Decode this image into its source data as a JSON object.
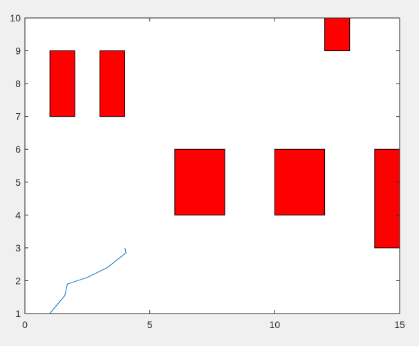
{
  "chart_data": {
    "type": "scatter",
    "title": "",
    "xlabel": "",
    "ylabel": "",
    "xlim": [
      0,
      15
    ],
    "ylim": [
      1,
      10
    ],
    "xticks": [
      0,
      5,
      10,
      15
    ],
    "yticks": [
      1,
      2,
      3,
      4,
      5,
      6,
      7,
      8,
      9,
      10
    ],
    "xtick_labels": [
      "0",
      "5",
      "10",
      "15"
    ],
    "ytick_labels": [
      "1",
      "2",
      "3",
      "4",
      "5",
      "6",
      "7",
      "8",
      "9",
      "10"
    ],
    "grid": false,
    "rectangles": [
      {
        "x0": 1,
        "x1": 2,
        "y0": 7,
        "y1": 9
      },
      {
        "x0": 3,
        "x1": 4,
        "y0": 7,
        "y1": 9
      },
      {
        "x0": 12,
        "x1": 13,
        "y0": 9,
        "y1": 10
      },
      {
        "x0": 6,
        "x1": 8,
        "y0": 4,
        "y1": 6
      },
      {
        "x0": 10,
        "x1": 12,
        "y0": 4,
        "y1": 6
      },
      {
        "x0": 14,
        "x1": 15,
        "y0": 3,
        "y1": 6
      }
    ],
    "rect_fill": "#ff0000",
    "rect_stroke": "#000000",
    "line": {
      "color": "#0072bd",
      "x": [
        1.0,
        1.6,
        1.7,
        2.5,
        3.3,
        4.05,
        4.0
      ],
      "y": [
        1.0,
        1.55,
        1.9,
        2.1,
        2.4,
        2.85,
        3.0
      ]
    }
  }
}
